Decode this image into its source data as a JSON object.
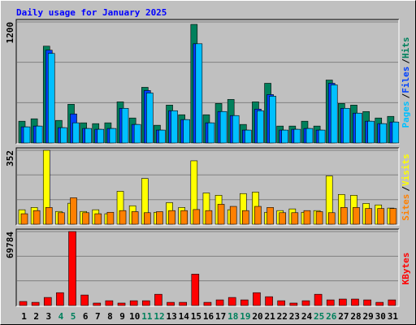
{
  "chart_data": [
    {
      "type": "bar",
      "title": "Daily usage for January 2025",
      "title_color": "#0000ff",
      "categories": [
        "1",
        "2",
        "3",
        "4",
        "5",
        "6",
        "7",
        "8",
        "9",
        "10",
        "11",
        "12",
        "13",
        "14",
        "15",
        "16",
        "17",
        "18",
        "19",
        "20",
        "21",
        "22",
        "23",
        "24",
        "25",
        "26",
        "27",
        "28",
        "29",
        "30",
        "31"
      ],
      "category_colors": [
        "#000000",
        "#000000",
        "#000000",
        "#00805c",
        "#00805c",
        "#000000",
        "#000000",
        "#000000",
        "#000000",
        "#000000",
        "#00805c",
        "#00805c",
        "#000000",
        "#000000",
        "#000000",
        "#000000",
        "#000000",
        "#00805c",
        "#00805c",
        "#000000",
        "#000000",
        "#000000",
        "#000000",
        "#000000",
        "#00805c",
        "#00805c",
        "#000000",
        "#000000",
        "#000000",
        "#000000",
        "#000000"
      ],
      "legend_separator": "/",
      "series": [
        {
          "name": "Hits",
          "color": "#00805c",
          "values": [
            216,
            240,
            960,
            224,
            384,
            200,
            192,
            200,
            408,
            248,
            552,
            176,
            376,
            280,
            1176,
            280,
            392,
            432,
            184,
            408,
            592,
            168,
            168,
            216,
            168,
            624,
            392,
            376,
            312,
            248,
            264
          ]
        },
        {
          "name": "Files",
          "color": "#0040ff",
          "values": [
            160,
            168,
            920,
            152,
            288,
            144,
            136,
            144,
            344,
            184,
            520,
            128,
            320,
            232,
            984,
            200,
            312,
            272,
            128,
            336,
            480,
            128,
            136,
            144,
            128,
            592,
            344,
            296,
            216,
            192,
            208
          ]
        },
        {
          "name": "Pages",
          "color": "#00c0ff",
          "values": [
            160,
            168,
            888,
            152,
            200,
            144,
            136,
            144,
            344,
            184,
            496,
            128,
            320,
            232,
            984,
            200,
            312,
            272,
            128,
            320,
            464,
            128,
            136,
            144,
            128,
            576,
            344,
            296,
            216,
            192,
            208
          ]
        }
      ],
      "ylim": [
        0,
        1200
      ],
      "yticks": [
        1200
      ],
      "gridlines": [
        400,
        800
      ]
    },
    {
      "type": "bar",
      "legend_separator": "/",
      "series": [
        {
          "name": "Visits",
          "color": "#ffff00",
          "values": [
            69,
            80,
            352,
            61,
            100,
            61,
            69,
            50,
            157,
            88,
            218,
            57,
            103,
            80,
            302,
            149,
            138,
            69,
            146,
            153,
            57,
            65,
            73,
            57,
            65,
            230,
            142,
            138,
            99,
            92,
            77
          ]
        },
        {
          "name": "Sites",
          "color": "#ff8000",
          "values": [
            50,
            65,
            80,
            55,
            126,
            55,
            50,
            57,
            65,
            60,
            55,
            60,
            65,
            65,
            70,
            65,
            95,
            85,
            65,
            85,
            80,
            55,
            55,
            65,
            60,
            55,
            80,
            80,
            75,
            75,
            75
          ]
        }
      ],
      "ylim": [
        0,
        352
      ],
      "yticks": [
        352
      ],
      "gridlines": [
        117,
        235
      ]
    },
    {
      "type": "bar",
      "series": [
        {
          "name": "KBytes",
          "color": "#ff0000",
          "values": [
            3800,
            3000,
            7600,
            12100,
            69784,
            9900,
            2300,
            4500,
            2300,
            4500,
            4500,
            10600,
            3000,
            3000,
            29600,
            3000,
            5300,
            7600,
            5300,
            12100,
            8300,
            4500,
            2300,
            4500,
            10600,
            5300,
            6100,
            6100,
            5300,
            3000,
            5300
          ]
        }
      ],
      "ylim": [
        0,
        69784
      ],
      "yticks": [
        69784
      ],
      "gridlines": [
        23261,
        46523
      ]
    }
  ]
}
